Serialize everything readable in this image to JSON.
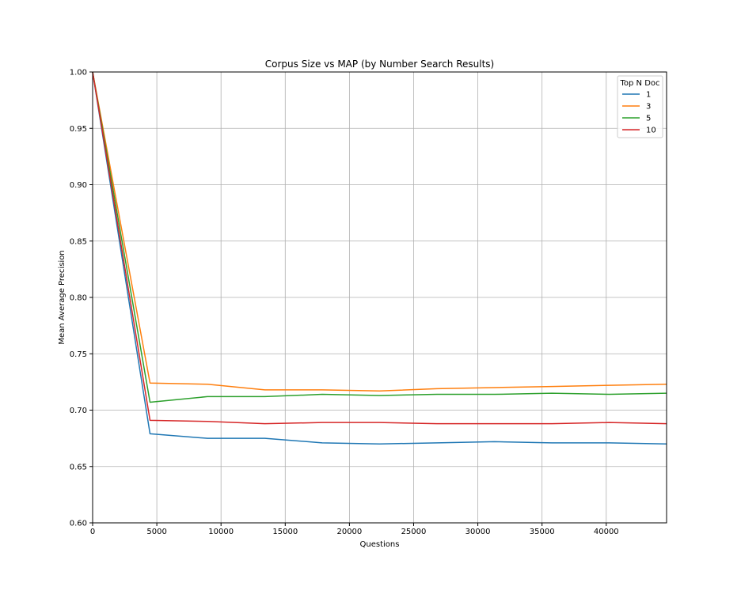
{
  "chart_data": {
    "type": "line",
    "title": "Corpus Size vs MAP (by Number Search Results)",
    "xlabel": "Questions",
    "ylabel": "Mean Average Precision",
    "xlim": [
      0,
      44700
    ],
    "ylim": [
      0.6,
      1.0
    ],
    "xticks": [
      0,
      5000,
      10000,
      15000,
      20000,
      25000,
      30000,
      35000,
      40000
    ],
    "yticks": [
      0.6,
      0.65,
      0.7,
      0.75,
      0.8,
      0.85,
      0.9,
      0.95,
      1.0
    ],
    "grid": true,
    "legend": {
      "title": "Top N Doc",
      "placement": "top-right"
    },
    "x": [
      0,
      4470,
      8940,
      13410,
      17880,
      22350,
      26820,
      31290,
      35760,
      40230,
      44700
    ],
    "series": [
      {
        "name": "1",
        "color": "#1f77b4",
        "values": [
          1.0,
          0.679,
          0.675,
          0.675,
          0.671,
          0.67,
          0.671,
          0.672,
          0.671,
          0.671,
          0.67
        ]
      },
      {
        "name": "3",
        "color": "#ff7f0e",
        "values": [
          1.0,
          0.724,
          0.723,
          0.718,
          0.718,
          0.717,
          0.719,
          0.72,
          0.721,
          0.722,
          0.723
        ]
      },
      {
        "name": "5",
        "color": "#2ca02c",
        "values": [
          1.0,
          0.707,
          0.712,
          0.712,
          0.714,
          0.713,
          0.714,
          0.714,
          0.715,
          0.714,
          0.715
        ]
      },
      {
        "name": "10",
        "color": "#d62728",
        "values": [
          1.0,
          0.691,
          0.69,
          0.688,
          0.689,
          0.689,
          0.688,
          0.688,
          0.688,
          0.689,
          0.688
        ]
      }
    ]
  }
}
